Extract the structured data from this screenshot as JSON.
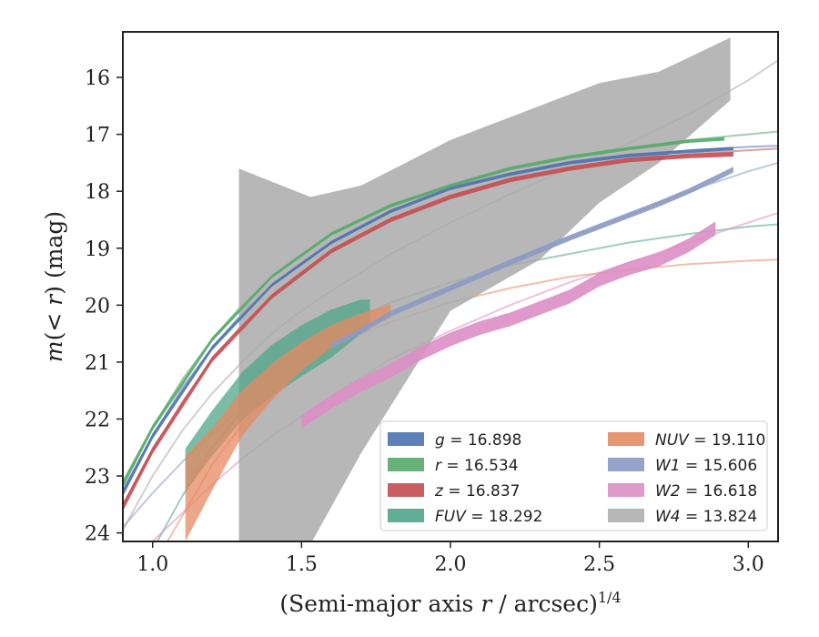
{
  "chart_data": {
    "type": "line",
    "xlabel": "(Semi-major axis r / arcsec)",
    "xlabel_parts": {
      "prefix": "(Semi-major axis ",
      "var": "r",
      "suffix": " / arcsec)",
      "exponent": "1/4"
    },
    "ylabel": "m(< r) (mag)",
    "ylabel_parts": {
      "prefix": "m(< ",
      "var": "r",
      "suffix": ") (mag)"
    },
    "xlim": [
      0.9,
      3.1
    ],
    "ylim": [
      24.15,
      15.2
    ],
    "y_inverted": true,
    "grid": false,
    "legend_placement": "lower-right",
    "x_ticks": [
      1.0,
      1.5,
      2.0,
      2.5,
      3.0
    ],
    "x_tick_labels": [
      "1.0",
      "1.5",
      "2.0",
      "2.5",
      "3.0"
    ],
    "y_ticks": [
      16,
      17,
      18,
      19,
      20,
      21,
      22,
      23,
      24
    ],
    "y_tick_labels": [
      "16",
      "17",
      "18",
      "19",
      "20",
      "21",
      "22",
      "23",
      "24"
    ],
    "series": [
      {
        "band": "g",
        "legend_label": "g = 16.898",
        "color": "#4c72b0",
        "model": [
          [
            0.9,
            23.25
          ],
          [
            1.0,
            22.3
          ],
          [
            1.1,
            21.45
          ],
          [
            1.2,
            20.75
          ],
          [
            1.3,
            20.15
          ],
          [
            1.4,
            19.65
          ],
          [
            1.5,
            19.25
          ],
          [
            1.6,
            18.9
          ],
          [
            1.8,
            18.35
          ],
          [
            2.0,
            17.95
          ],
          [
            2.2,
            17.7
          ],
          [
            2.4,
            17.5
          ],
          [
            2.6,
            17.37
          ],
          [
            2.8,
            17.28
          ],
          [
            3.0,
            17.22
          ],
          [
            3.1,
            17.2
          ]
        ],
        "data_x": [
          0.9,
          1.0,
          1.2,
          1.4,
          1.6,
          1.8,
          2.0,
          2.2,
          2.4,
          2.6,
          2.8,
          2.95
        ],
        "data_y": [
          23.3,
          22.3,
          20.75,
          19.65,
          18.9,
          18.35,
          17.95,
          17.7,
          17.5,
          17.37,
          17.3,
          17.25
        ],
        "data_err": [
          0.06,
          0.05,
          0.04,
          0.03,
          0.03,
          0.03,
          0.03,
          0.03,
          0.03,
          0.03,
          0.03,
          0.03
        ]
      },
      {
        "band": "r",
        "legend_label": "r = 16.534",
        "color": "#55a868",
        "model": [
          [
            0.9,
            23.1
          ],
          [
            1.0,
            22.15
          ],
          [
            1.1,
            21.3
          ],
          [
            1.2,
            20.6
          ],
          [
            1.3,
            20.0
          ],
          [
            1.4,
            19.5
          ],
          [
            1.5,
            19.1
          ],
          [
            1.6,
            18.75
          ],
          [
            1.8,
            18.25
          ],
          [
            2.0,
            17.9
          ],
          [
            2.2,
            17.6
          ],
          [
            2.4,
            17.4
          ],
          [
            2.6,
            17.25
          ],
          [
            2.8,
            17.1
          ],
          [
            3.0,
            17.0
          ],
          [
            3.1,
            16.95
          ]
        ],
        "data_x": [
          0.9,
          1.0,
          1.2,
          1.4,
          1.6,
          1.8,
          2.0,
          2.2,
          2.4,
          2.6,
          2.8,
          2.92
        ],
        "data_y": [
          23.15,
          22.15,
          20.6,
          19.5,
          18.75,
          18.25,
          17.9,
          17.6,
          17.4,
          17.25,
          17.12,
          17.08
        ],
        "data_err": [
          0.06,
          0.05,
          0.04,
          0.03,
          0.03,
          0.03,
          0.03,
          0.03,
          0.03,
          0.03,
          0.03,
          0.03
        ]
      },
      {
        "band": "z",
        "legend_label": "z = 16.837",
        "color": "#c44e52",
        "model": [
          [
            0.9,
            23.5
          ],
          [
            1.0,
            22.55
          ],
          [
            1.1,
            21.7
          ],
          [
            1.2,
            20.95
          ],
          [
            1.3,
            20.35
          ],
          [
            1.4,
            19.85
          ],
          [
            1.5,
            19.4
          ],
          [
            1.6,
            19.05
          ],
          [
            1.8,
            18.5
          ],
          [
            2.0,
            18.1
          ],
          [
            2.2,
            17.8
          ],
          [
            2.4,
            17.6
          ],
          [
            2.6,
            17.45
          ],
          [
            2.8,
            17.35
          ],
          [
            3.0,
            17.28
          ],
          [
            3.1,
            17.25
          ]
        ],
        "data_x": [
          0.9,
          1.0,
          1.2,
          1.4,
          1.6,
          1.8,
          2.0,
          2.2,
          2.4,
          2.6,
          2.8,
          2.95
        ],
        "data_y": [
          23.55,
          22.55,
          20.95,
          19.85,
          19.05,
          18.5,
          18.1,
          17.8,
          17.6,
          17.45,
          17.38,
          17.35
        ],
        "data_err": [
          0.07,
          0.06,
          0.05,
          0.04,
          0.04,
          0.04,
          0.04,
          0.04,
          0.04,
          0.04,
          0.04,
          0.04
        ]
      },
      {
        "band": "FUV",
        "legend_label": "FUV = 18.292",
        "color": "#4fa58a",
        "model": [
          [
            1.0,
            24.3
          ],
          [
            1.1,
            23.35
          ],
          [
            1.2,
            22.5
          ],
          [
            1.3,
            21.85
          ],
          [
            1.4,
            21.3
          ],
          [
            1.5,
            20.85
          ],
          [
            1.6,
            20.5
          ],
          [
            1.7,
            20.2
          ],
          [
            1.8,
            19.95
          ],
          [
            2.0,
            19.6
          ],
          [
            2.2,
            19.3
          ],
          [
            2.4,
            19.1
          ],
          [
            2.6,
            18.9
          ],
          [
            2.8,
            18.75
          ],
          [
            3.0,
            18.62
          ],
          [
            3.1,
            18.58
          ]
        ],
        "data_x": [
          1.11,
          1.2,
          1.3,
          1.4,
          1.5,
          1.6,
          1.7,
          1.73
        ],
        "data_y": [
          22.9,
          22.25,
          21.6,
          21.15,
          20.8,
          20.5,
          20.2,
          20.15
        ],
        "data_err": [
          0.38,
          0.4,
          0.42,
          0.45,
          0.45,
          0.42,
          0.3,
          0.25
        ]
      },
      {
        "band": "NUV",
        "legend_label": "NUV = 19.110",
        "color": "#e58a62",
        "model": [
          [
            1.0,
            24.6
          ],
          [
            1.1,
            23.7
          ],
          [
            1.2,
            22.8
          ],
          [
            1.3,
            22.1
          ],
          [
            1.4,
            21.55
          ],
          [
            1.5,
            21.1
          ],
          [
            1.6,
            20.75
          ],
          [
            1.7,
            20.5
          ],
          [
            1.8,
            20.3
          ],
          [
            2.0,
            19.95
          ],
          [
            2.2,
            19.7
          ],
          [
            2.4,
            19.5
          ],
          [
            2.6,
            19.38
          ],
          [
            2.8,
            19.28
          ],
          [
            3.0,
            19.22
          ],
          [
            3.1,
            19.2
          ]
        ],
        "data_x": [
          1.11,
          1.2,
          1.3,
          1.4,
          1.5,
          1.6,
          1.7,
          1.8
        ],
        "data_y": [
          23.4,
          22.7,
          21.9,
          21.35,
          20.9,
          20.55,
          20.3,
          20.1
        ],
        "data_err": [
          0.75,
          0.55,
          0.4,
          0.32,
          0.25,
          0.2,
          0.16,
          0.12
        ]
      },
      {
        "band": "W1",
        "legend_label": "W1 = 15.606",
        "color": "#8c9ac4",
        "model": [
          [
            0.9,
            23.9
          ],
          [
            1.0,
            23.3
          ],
          [
            1.1,
            22.75
          ],
          [
            1.2,
            22.25
          ],
          [
            1.3,
            21.8
          ],
          [
            1.4,
            21.4
          ],
          [
            1.5,
            21.05
          ],
          [
            1.6,
            20.72
          ],
          [
            1.8,
            20.15
          ],
          [
            2.0,
            19.7
          ],
          [
            2.2,
            19.25
          ],
          [
            2.4,
            18.82
          ],
          [
            2.6,
            18.42
          ],
          [
            2.8,
            18.0
          ],
          [
            3.0,
            17.65
          ],
          [
            3.1,
            17.5
          ]
        ],
        "data_x": [
          1.6,
          1.7,
          1.8,
          2.0,
          2.2,
          2.4,
          2.6,
          2.7,
          2.8,
          2.9,
          2.95
        ],
        "data_y": [
          20.72,
          20.45,
          20.15,
          19.7,
          19.25,
          18.82,
          18.42,
          18.22,
          18.0,
          17.75,
          17.62
        ],
        "data_err": [
          0.05,
          0.05,
          0.05,
          0.05,
          0.05,
          0.05,
          0.05,
          0.05,
          0.05,
          0.05,
          0.05
        ]
      },
      {
        "band": "W2",
        "legend_label": "W2 = 16.618",
        "color": "#dc8ec4",
        "model": [
          [
            0.9,
            24.7
          ],
          [
            1.0,
            24.15
          ],
          [
            1.1,
            23.65
          ],
          [
            1.2,
            23.15
          ],
          [
            1.3,
            22.7
          ],
          [
            1.4,
            22.3
          ],
          [
            1.5,
            21.95
          ],
          [
            1.6,
            21.6
          ],
          [
            1.8,
            20.95
          ],
          [
            2.0,
            20.45
          ],
          [
            2.2,
            20.0
          ],
          [
            2.4,
            19.6
          ],
          [
            2.6,
            19.25
          ],
          [
            2.8,
            18.9
          ],
          [
            3.0,
            18.55
          ],
          [
            3.1,
            18.38
          ]
        ],
        "data_x": [
          1.5,
          1.6,
          1.7,
          1.8,
          1.9,
          2.0,
          2.1,
          2.2,
          2.3,
          2.4,
          2.5,
          2.6,
          2.7,
          2.8,
          2.89
        ],
        "data_y": [
          22.05,
          21.7,
          21.4,
          21.15,
          20.85,
          20.6,
          20.4,
          20.25,
          20.05,
          19.85,
          19.55,
          19.35,
          19.2,
          18.95,
          18.65
        ],
        "data_err": [
          0.12,
          0.12,
          0.12,
          0.12,
          0.12,
          0.12,
          0.12,
          0.12,
          0.12,
          0.12,
          0.12,
          0.12,
          0.12,
          0.12,
          0.12
        ]
      },
      {
        "band": "W4",
        "legend_label": "W4 = 13.824",
        "color": "#aaaaaa",
        "model": [
          [
            0.9,
            23.95
          ],
          [
            1.0,
            23.0
          ],
          [
            1.1,
            22.2
          ],
          [
            1.2,
            21.55
          ],
          [
            1.3,
            21.0
          ],
          [
            1.4,
            20.5
          ],
          [
            1.5,
            20.1
          ],
          [
            1.6,
            19.75
          ],
          [
            1.8,
            19.1
          ],
          [
            2.0,
            18.55
          ],
          [
            2.2,
            18.05
          ],
          [
            2.4,
            17.6
          ],
          [
            2.6,
            17.15
          ],
          [
            2.8,
            16.65
          ],
          [
            3.0,
            16.05
          ],
          [
            3.1,
            15.7
          ]
        ],
        "data_x": [
          1.29,
          1.53,
          1.7,
          2.0,
          2.3,
          2.5,
          2.7,
          2.94
        ],
        "data_lower": [
          24.2,
          24.2,
          22.6,
          20.1,
          19.2,
          18.2,
          17.5,
          16.4
        ],
        "data_upper": [
          17.6,
          18.1,
          17.9,
          17.1,
          16.5,
          16.1,
          15.9,
          15.3
        ]
      }
    ]
  }
}
